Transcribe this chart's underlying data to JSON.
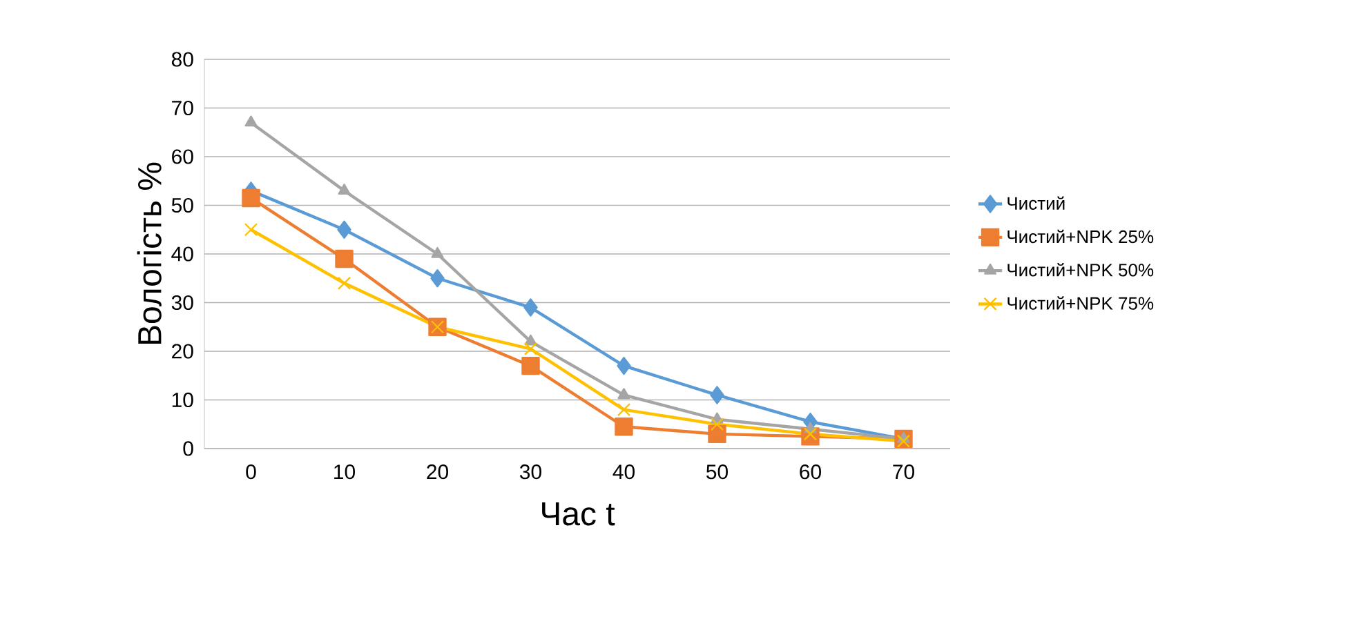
{
  "chart_data": {
    "type": "line",
    "xlabel": "Час t",
    "ylabel": "Вологість %",
    "categories": [
      "0",
      "10",
      "20",
      "30",
      "40",
      "50",
      "60",
      "70"
    ],
    "series": [
      {
        "name": "Чистий",
        "color": "#5b9bd5",
        "marker": "diamond",
        "values": [
          53,
          45,
          35,
          29,
          17,
          11,
          5.5,
          2
        ]
      },
      {
        "name": "Чистий+NPK 25%",
        "color": "#ed7d31",
        "marker": "square",
        "values": [
          51.5,
          39,
          25,
          17,
          4.5,
          3,
          2.5,
          2
        ]
      },
      {
        "name": "Чистий+NPK 50%",
        "color": "#a5a5a5",
        "marker": "triangle",
        "values": [
          67,
          53,
          40,
          22,
          11,
          6,
          4,
          2
        ]
      },
      {
        "name": "Чистий+NPK 75%",
        "color": "#ffc000",
        "marker": "cross",
        "values": [
          45,
          34,
          25,
          20.5,
          8,
          5,
          3,
          1.5
        ]
      }
    ],
    "ylim": [
      0,
      80
    ],
    "yticks": [
      0,
      10,
      20,
      30,
      40,
      50,
      60,
      70,
      80
    ],
    "grid": "y",
    "legend": "right"
  }
}
